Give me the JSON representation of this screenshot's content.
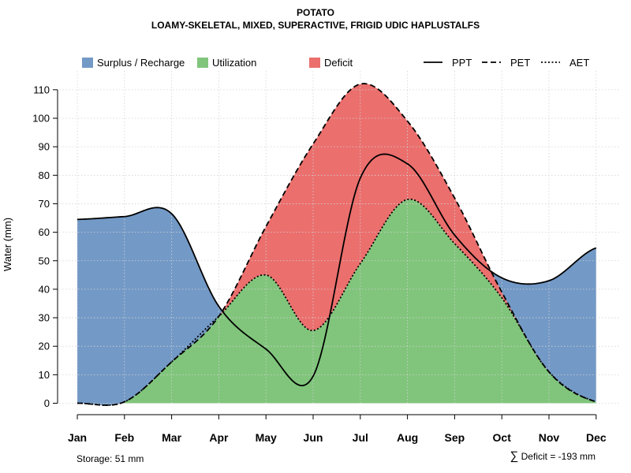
{
  "title": "POTATO",
  "subtitle": "LOAMY-SKELETAL, MIXED, SUPERACTIVE, FRIGID UDIC HAPLUSTALFS",
  "footer": {
    "storage": "Storage: 51 mm",
    "deficit_symbol": "∑",
    "deficit": "Deficit = -193 mm"
  },
  "colors": {
    "surplus": "#7399C6",
    "utilization": "#80C57B",
    "deficit": "#EB6F6D",
    "grid": "#d3d3d3"
  },
  "chart_data": {
    "type": "area",
    "title": "POTATO",
    "subtitle": "LOAMY-SKELETAL, MIXED, SUPERACTIVE, FRIGID UDIC HAPLUSTALFS",
    "xlabel": "",
    "ylabel": "Water (mm)",
    "ylim": [
      0,
      116
    ],
    "yticks": [
      0,
      10,
      20,
      30,
      40,
      50,
      60,
      70,
      80,
      90,
      100,
      110
    ],
    "grid": true,
    "categories": [
      "Jan",
      "Feb",
      "Mar",
      "Apr",
      "May",
      "Jun",
      "Jul",
      "Aug",
      "Sep",
      "Oct",
      "Nov",
      "Dec"
    ],
    "legend": [
      {
        "label": "Surplus / Recharge",
        "kind": "fill",
        "color": "#7399C6"
      },
      {
        "label": "Utilization",
        "kind": "fill",
        "color": "#80C57B"
      },
      {
        "label": "Deficit",
        "kind": "fill",
        "color": "#EB6F6D"
      },
      {
        "label": "PPT",
        "kind": "line",
        "dash": "solid"
      },
      {
        "label": "PET",
        "kind": "line",
        "dash": "dashed"
      },
      {
        "label": "AET",
        "kind": "line",
        "dash": "dotted"
      }
    ],
    "series": [
      {
        "name": "PPT",
        "values": [
          64.5,
          65.5,
          66.5,
          34,
          19,
          9.5,
          79,
          84,
          59,
          44,
          43,
          54.5
        ]
      },
      {
        "name": "PET",
        "values": [
          0,
          0.5,
          14.5,
          30.5,
          62,
          91,
          112,
          99,
          72,
          39,
          11,
          0.5
        ]
      },
      {
        "name": "AET",
        "values": [
          0,
          0.5,
          14.5,
          30.5,
          45,
          25.5,
          49,
          71.5,
          56,
          37,
          11,
          0.5
        ]
      }
    ]
  }
}
